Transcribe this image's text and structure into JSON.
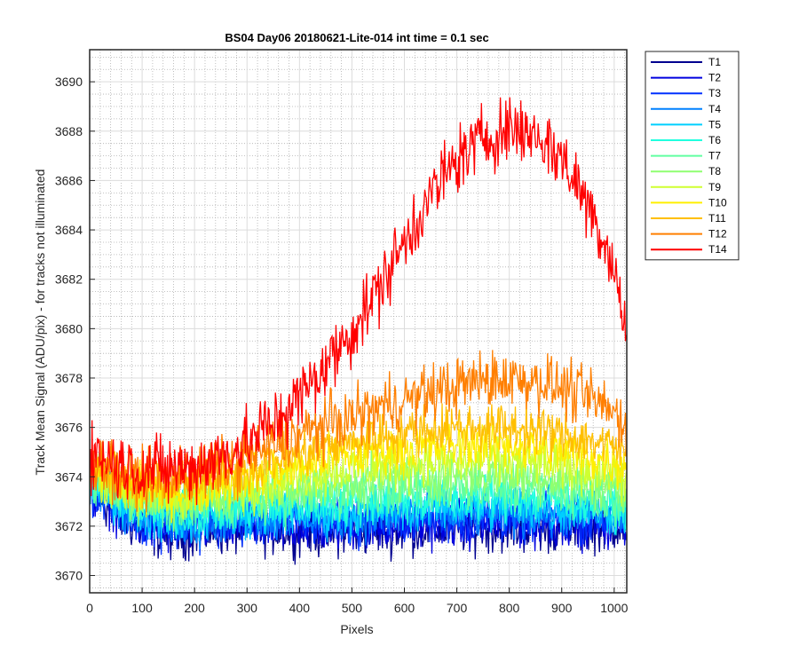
{
  "chart_data": {
    "type": "line",
    "title": "BS04 Day06 20180621-Lite-014 int time = 0.1 sec",
    "xlabel": "Pixels",
    "ylabel": "Track Mean Signal (ADU/pix) - for tracks not illuminated",
    "xlim": [
      0,
      1024
    ],
    "ylim": [
      3669.3,
      3691.3
    ],
    "xticks": [
      0,
      100,
      200,
      300,
      400,
      500,
      600,
      700,
      800,
      900,
      1000
    ],
    "yticks": [
      3670,
      3672,
      3674,
      3676,
      3678,
      3680,
      3682,
      3684,
      3686,
      3688,
      3690
    ],
    "grid": true,
    "minor_grid": true,
    "legend_position": "outside-top-right",
    "x": [
      0,
      25,
      50,
      100,
      150,
      200,
      250,
      300,
      350,
      400,
      450,
      500,
      550,
      600,
      650,
      700,
      750,
      800,
      850,
      900,
      950,
      1000,
      1024
    ],
    "series": [
      {
        "name": "T1",
        "color": "#00008f",
        "values": [
          3673.0,
          3673.0,
          3672.5,
          3671.8,
          3671.6,
          3671.7,
          3671.8,
          3671.8,
          3671.8,
          3671.8,
          3671.7,
          3671.8,
          3671.8,
          3671.8,
          3671.9,
          3671.9,
          3671.9,
          3671.9,
          3671.9,
          3671.9,
          3671.9,
          3672.0,
          3672.0
        ]
      },
      {
        "name": "T2",
        "color": "#0000df",
        "values": [
          3673.2,
          3673.2,
          3672.7,
          3672.0,
          3671.8,
          3671.9,
          3672.0,
          3672.0,
          3672.0,
          3672.0,
          3671.9,
          3672.0,
          3672.0,
          3672.0,
          3672.1,
          3672.1,
          3672.1,
          3672.1,
          3672.1,
          3672.1,
          3672.1,
          3672.1,
          3672.1
        ]
      },
      {
        "name": "T3",
        "color": "#0030ff",
        "values": [
          3673.4,
          3673.3,
          3672.8,
          3672.2,
          3672.0,
          3672.0,
          3672.1,
          3672.2,
          3672.2,
          3672.2,
          3672.1,
          3672.2,
          3672.2,
          3672.3,
          3672.3,
          3672.3,
          3672.3,
          3672.3,
          3672.3,
          3672.3,
          3672.3,
          3672.3,
          3672.3
        ]
      },
      {
        "name": "T4",
        "color": "#0080ff",
        "values": [
          3673.5,
          3673.4,
          3673.0,
          3672.3,
          3672.2,
          3672.2,
          3672.3,
          3672.3,
          3672.4,
          3672.4,
          3672.3,
          3672.4,
          3672.4,
          3672.5,
          3672.5,
          3672.5,
          3672.5,
          3672.5,
          3672.5,
          3672.5,
          3672.5,
          3672.5,
          3672.5
        ]
      },
      {
        "name": "T5",
        "color": "#00cfff",
        "values": [
          3673.6,
          3673.5,
          3673.1,
          3672.5,
          3672.3,
          3672.4,
          3672.5,
          3672.5,
          3672.6,
          3672.6,
          3672.5,
          3672.6,
          3672.7,
          3672.7,
          3672.8,
          3672.8,
          3672.8,
          3672.8,
          3672.8,
          3672.7,
          3672.7,
          3672.6,
          3672.6
        ]
      },
      {
        "name": "T6",
        "color": "#20ffdf",
        "values": [
          3673.8,
          3673.7,
          3673.3,
          3672.7,
          3672.6,
          3672.6,
          3672.7,
          3672.8,
          3672.8,
          3672.9,
          3672.9,
          3673.0,
          3673.0,
          3673.1,
          3673.1,
          3673.1,
          3673.2,
          3673.2,
          3673.1,
          3673.1,
          3673.0,
          3672.9,
          3672.8
        ]
      },
      {
        "name": "T7",
        "color": "#60ffa0",
        "values": [
          3673.9,
          3673.8,
          3673.4,
          3672.9,
          3672.8,
          3672.8,
          3672.9,
          3673.0,
          3673.1,
          3673.2,
          3673.3,
          3673.4,
          3673.4,
          3673.5,
          3673.5,
          3673.6,
          3673.6,
          3673.6,
          3673.5,
          3673.4,
          3673.3,
          3673.2,
          3673.1
        ]
      },
      {
        "name": "T8",
        "color": "#8fff70",
        "values": [
          3674.0,
          3673.9,
          3673.6,
          3673.1,
          3673.0,
          3673.0,
          3673.1,
          3673.3,
          3673.4,
          3673.6,
          3673.7,
          3673.8,
          3673.9,
          3674.0,
          3674.0,
          3674.1,
          3674.1,
          3674.1,
          3674.0,
          3673.9,
          3673.8,
          3673.6,
          3673.5
        ]
      },
      {
        "name": "T9",
        "color": "#cfff30",
        "values": [
          3674.1,
          3674.0,
          3673.7,
          3673.3,
          3673.2,
          3673.2,
          3673.4,
          3673.6,
          3673.8,
          3674.0,
          3674.2,
          3674.3,
          3674.4,
          3674.5,
          3674.6,
          3674.6,
          3674.7,
          3674.6,
          3674.6,
          3674.4,
          3674.3,
          3674.1,
          3673.9
        ]
      },
      {
        "name": "T10",
        "color": "#ffef00",
        "values": [
          3674.3,
          3674.2,
          3673.9,
          3673.5,
          3673.4,
          3673.5,
          3673.7,
          3673.9,
          3674.2,
          3674.4,
          3674.7,
          3674.9,
          3675.0,
          3675.1,
          3675.2,
          3675.3,
          3675.3,
          3675.3,
          3675.2,
          3675.0,
          3674.8,
          3674.6,
          3674.4
        ]
      },
      {
        "name": "T11",
        "color": "#ffbf00",
        "values": [
          3674.5,
          3674.4,
          3674.1,
          3673.7,
          3673.7,
          3673.8,
          3674.0,
          3674.3,
          3674.6,
          3674.9,
          3675.2,
          3675.4,
          3675.6,
          3675.8,
          3675.9,
          3676.0,
          3676.0,
          3676.0,
          3675.9,
          3675.7,
          3675.5,
          3675.2,
          3675.0
        ]
      },
      {
        "name": "T12",
        "color": "#ff7f00",
        "values": [
          3674.7,
          3674.6,
          3674.3,
          3674.0,
          3674.0,
          3674.1,
          3674.4,
          3674.8,
          3675.3,
          3675.7,
          3676.1,
          3676.4,
          3676.8,
          3677.1,
          3677.4,
          3677.7,
          3677.9,
          3678.0,
          3677.9,
          3677.6,
          3677.2,
          3676.6,
          3676.0
        ]
      },
      {
        "name": "T14",
        "color": "#ff0000",
        "values": [
          3675.0,
          3674.8,
          3674.5,
          3674.3,
          3674.3,
          3674.4,
          3674.8,
          3675.4,
          3676.2,
          3677.2,
          3678.5,
          3679.9,
          3681.6,
          3683.5,
          3685.4,
          3686.8,
          3687.7,
          3688.1,
          3687.9,
          3686.9,
          3685.1,
          3682.6,
          3679.5
        ]
      }
    ]
  }
}
